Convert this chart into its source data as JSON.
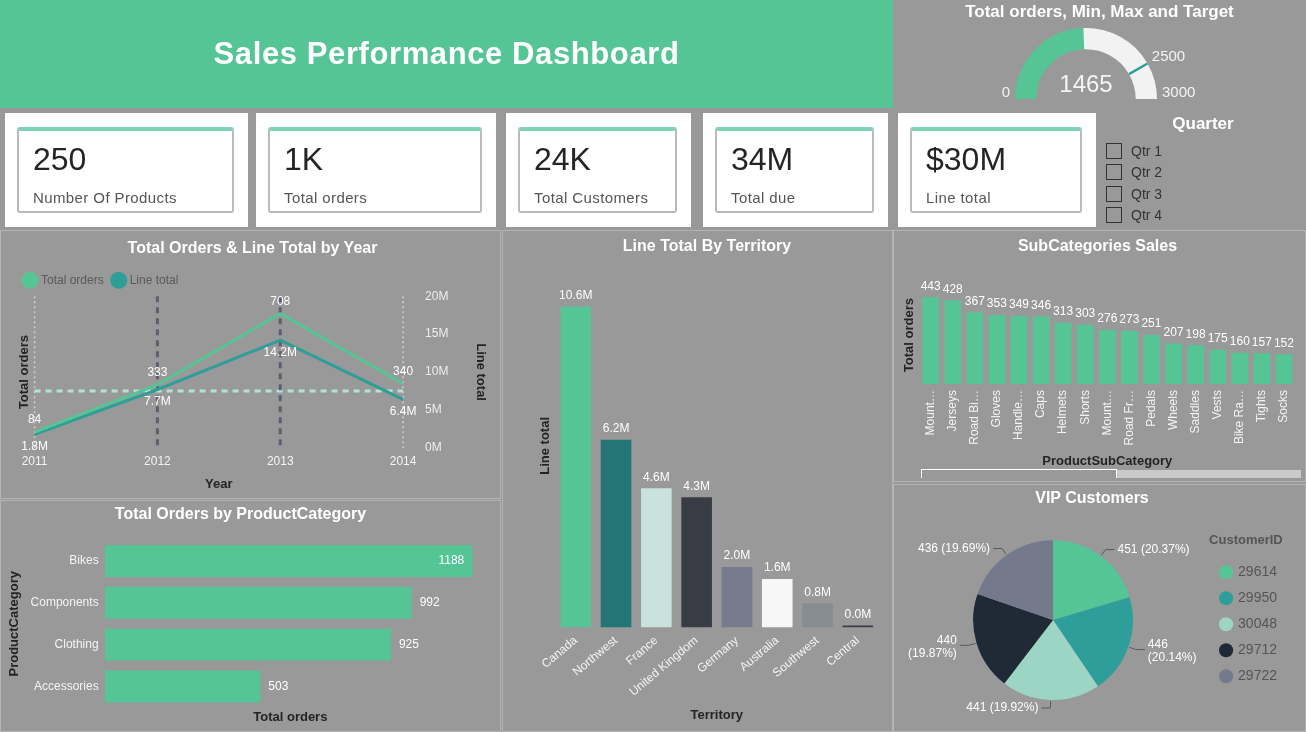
{
  "chart_data": [
    {
      "type": "other",
      "title": "Sales Performance Dashboard"
    },
    {
      "type": "donut",
      "title": "Total orders, Min, Max and Target",
      "categories": [
        null,
        null,
        null
      ],
      "values": [
        1465,
        1035,
        500
      ],
      "colors": [
        "#55c595",
        "#f2f2f2",
        "#f2f2f2"
      ],
      "value_labels": [
        "1465",
        null,
        null
      ],
      "annotations": [
        "0",
        "2500",
        "3000"
      ]
    },
    {
      "type": "other",
      "annotations": [
        "250",
        "Number Of Products"
      ]
    },
    {
      "type": "other",
      "annotations": [
        "1K",
        "Total orders"
      ]
    },
    {
      "type": "other",
      "annotations": [
        "24K",
        "Total Customers"
      ]
    },
    {
      "type": "other",
      "annotations": [
        "34M",
        "Total due"
      ]
    },
    {
      "type": "other",
      "annotations": [
        "$30M",
        "Line total"
      ]
    },
    {
      "type": "other",
      "title": "Quarter",
      "annotations": [
        "Qtr 1",
        "Qtr 2",
        "Qtr 3",
        "Qtr 4"
      ]
    },
    {
      "type": "line",
      "title": "Total Orders & Line Total by Year",
      "xlabel": "Year",
      "ylabel": "Total orders",
      "y2label": "Line total",
      "x": [
        2011,
        2012,
        2013,
        2014
      ],
      "xlim": [
        2011,
        2014
      ],
      "xticks": [
        2011,
        2012,
        2013,
        2014
      ],
      "y2lim": [
        0,
        20
      ],
      "y2ticks": [
        {
          "value": 0,
          "label": "0M"
        },
        {
          "value": 5,
          "label": "5M"
        },
        {
          "value": 10,
          "label": "10M"
        },
        {
          "value": 15,
          "label": "15M"
        },
        {
          "value": 20,
          "label": "20M"
        }
      ],
      "series": [
        {
          "name": "Total orders",
          "color": "#55c595",
          "values": [
            84,
            333,
            708,
            340
          ],
          "value_labels": [
            "84",
            "333",
            "708",
            "340"
          ]
        },
        {
          "name": "Line total",
          "color": "#2e9e98",
          "axis": "y2",
          "values": [
            1.8,
            7.7,
            14.2,
            6.4
          ],
          "value_labels": [
            "1.8M",
            "7.7M",
            "14.2M",
            "6.4M"
          ]
        }
      ],
      "ref_lines": [
        {
          "axis": "x",
          "value": 2011,
          "color": "#d0d0d0",
          "line_style": "dotted"
        },
        {
          "axis": "x",
          "value": 2014,
          "color": "#d0d0d0",
          "line_style": "dotted"
        },
        {
          "axis": "y2",
          "value": 7.5,
          "color": "#b5e3d3",
          "line_style": "dashed"
        },
        {
          "axis": "x",
          "value": 2012,
          "color": "#5c5f6e",
          "line_style": "dashed"
        },
        {
          "axis": "x",
          "value": 2013,
          "color": "#5c5f6e",
          "line_style": "dashed"
        }
      ],
      "legend": "top left",
      "marker": "none",
      "line_style": "solid"
    },
    {
      "type": "bar",
      "title": "Line Total By Territory",
      "xlabel": "Territory",
      "ylabel": "Line total",
      "categories": [
        "Canada",
        "Northwest",
        "France",
        "United Kingdom",
        "Germany",
        "Australia",
        "Southwest",
        "Central"
      ],
      "values": [
        10.6,
        6.2,
        4.6,
        4.3,
        2.0,
        1.6,
        0.8,
        0.0
      ],
      "value_labels": [
        "10.6M",
        "6.2M",
        "4.6M",
        "4.3M",
        "2.0M",
        "1.6M",
        "0.8M",
        "0.0M"
      ],
      "colors": [
        "#55c595",
        "#237673",
        "#c9e3dc",
        "#393c45",
        "#777b8c",
        "#f7f7f7",
        "#888c93",
        "#3b3f4e"
      ],
      "tick_labels": "x"
    },
    {
      "type": "bar",
      "title": "SubCategories Sales",
      "xlabel": "ProductSubCategory",
      "ylabel": "Total orders",
      "categories": [
        "Mount…",
        "Jerseys",
        "Road Bi…",
        "Gloves",
        "Handle…",
        "Caps",
        "Helmets",
        "Shorts",
        "Mount…",
        "Road Fr…",
        "Pedals",
        "Wheels",
        "Saddles",
        "Vests",
        "Bike Ra…",
        "Tights",
        "Socks"
      ],
      "values": [
        443,
        428,
        367,
        353,
        349,
        346,
        313,
        303,
        276,
        273,
        251,
        207,
        198,
        175,
        160,
        157,
        152
      ],
      "color": "#55c595",
      "data_labels": true,
      "tick_labels": "x"
    },
    {
      "type": "bar",
      "orientation": "horizontal",
      "title": "Total Orders by ProductCategory",
      "xlabel": "Total orders",
      "ylabel": "ProductCategory",
      "categories": [
        "Bikes",
        "Components",
        "Clothing",
        "Accessories"
      ],
      "values": [
        1188,
        992,
        925,
        503
      ],
      "color": "#55c595",
      "data_labels": true,
      "tick_labels": "y"
    },
    {
      "type": "pie",
      "title": "VIP Customers",
      "legend_title": "CustomerID",
      "legend": "right",
      "categories": [
        "29614",
        "29950",
        "30048",
        "29712",
        "29722"
      ],
      "values": [
        451,
        446,
        441,
        440,
        436
      ],
      "value_labels": [
        "451 (20.37%)",
        "446 (20.14%)",
        "441 (19.92%)",
        "440 (19.87%)",
        "436 (19.69%)"
      ],
      "colors": [
        "#55c595",
        "#2e9e9a",
        "#9dd5c5",
        "#1f2a36",
        "#747a8c"
      ]
    }
  ]
}
